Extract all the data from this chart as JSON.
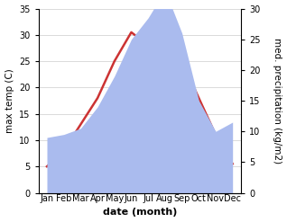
{
  "months": [
    "Jan",
    "Feb",
    "Mar",
    "Apr",
    "May",
    "Jun",
    "Jul",
    "Aug",
    "Sep",
    "Oct",
    "Nov",
    "Dec"
  ],
  "month_indices": [
    0,
    1,
    2,
    3,
    4,
    5,
    6,
    7,
    8,
    9,
    10,
    11
  ],
  "temperature": [
    5.0,
    8.0,
    13.0,
    18.0,
    25.0,
    30.5,
    28.0,
    29.5,
    25.0,
    18.0,
    11.0,
    5.5
  ],
  "precipitation": [
    9.0,
    9.5,
    10.5,
    14.0,
    19.0,
    25.0,
    28.5,
    33.0,
    26.0,
    15.0,
    10.0,
    11.5
  ],
  "temp_color": "#cc3333",
  "precip_color": "#aabbee",
  "xlabel": "date (month)",
  "ylabel_left": "max temp (C)",
  "ylabel_right": "med. precipitation (kg/m2)",
  "ylim_left": [
    0,
    35
  ],
  "ylim_right": [
    0,
    30
  ],
  "yticks_left": [
    0,
    5,
    10,
    15,
    20,
    25,
    30,
    35
  ],
  "yticks_right": [
    0,
    5,
    10,
    15,
    20,
    25,
    30
  ],
  "bg_color": "#ffffff",
  "temp_linewidth": 1.8,
  "xlabel_fontsize": 8,
  "ylabel_fontsize": 7.5,
  "tick_fontsize": 7
}
